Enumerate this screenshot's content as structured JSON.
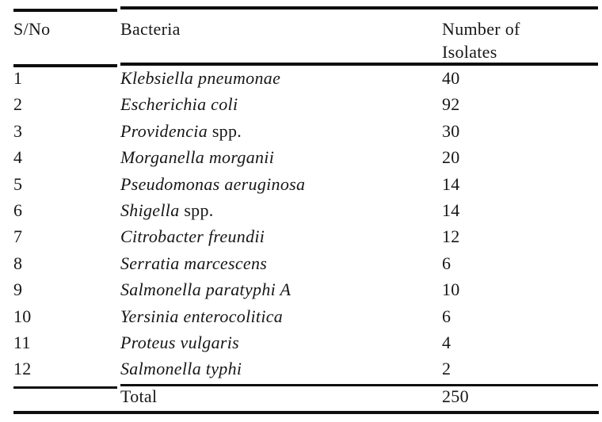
{
  "colors": {
    "background": "#ffffff",
    "text": "#171717",
    "rule": "#0e0e0e"
  },
  "table": {
    "header": {
      "sno": "S/No",
      "bacteria": "Bacteria",
      "isolates": "Number of\nIsolates"
    },
    "rows": [
      {
        "sno": "1",
        "name_italic": "Klebsiella pneumonae",
        "name_roman": "",
        "count": "40"
      },
      {
        "sno": "2",
        "name_italic": "Escherichia coli",
        "name_roman": "",
        "count": "92"
      },
      {
        "sno": "3",
        "name_italic": "Providencia",
        "name_roman": " spp.",
        "count": "30"
      },
      {
        "sno": "4",
        "name_italic": "Morganella morganii",
        "name_roman": "",
        "count": "20"
      },
      {
        "sno": "5",
        "name_italic": "Pseudomonas aeruginosa",
        "name_roman": "",
        "count": "14"
      },
      {
        "sno": "6",
        "name_italic": "Shigella",
        "name_roman": " spp.",
        "count": "14"
      },
      {
        "sno": "7",
        "name_italic": "Citrobacter freundii",
        "name_roman": "",
        "count": "12"
      },
      {
        "sno": "8",
        "name_italic": "Serratia marcescens",
        "name_roman": "",
        "count": "6"
      },
      {
        "sno": "9",
        "name_italic": "Salmonella paratyphi A",
        "name_roman": "",
        "count": "10"
      },
      {
        "sno": "10",
        "name_italic": "Yersinia enterocolitica",
        "name_roman": "",
        "count": "6"
      },
      {
        "sno": "11",
        "name_italic": "Proteus vulgaris",
        "name_roman": "",
        "count": "4"
      },
      {
        "sno": "12",
        "name_italic": "Salmonella typhi",
        "name_roman": "",
        "count": "2"
      }
    ],
    "total": {
      "label": "Total",
      "value": "250"
    }
  }
}
